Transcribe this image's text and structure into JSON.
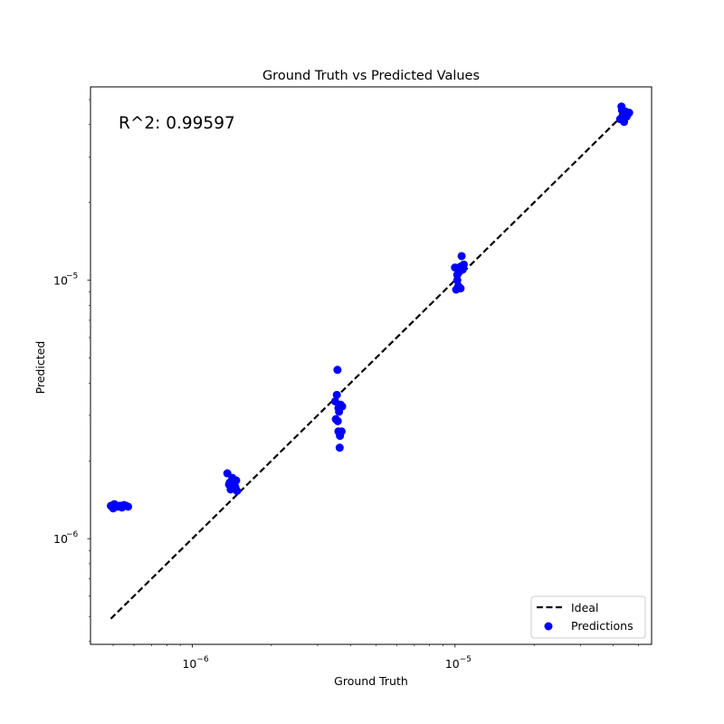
{
  "chart_data": {
    "type": "scatter",
    "title": "Ground Truth vs Predicted Values",
    "xlabel": "Ground Truth",
    "ylabel": "Predicted",
    "xscale": "log",
    "yscale": "log",
    "xlim": [
      4.1e-07,
      5.6e-05
    ],
    "ylim": [
      3.9e-07,
      5.6e-05
    ],
    "annotation": "R^2: 0.99597",
    "x_ticks": [
      {
        "base": "10",
        "exp": "−6",
        "value": 1e-06
      },
      {
        "base": "10",
        "exp": "−5",
        "value": 1e-05
      }
    ],
    "y_ticks": [
      {
        "base": "10",
        "exp": "−6",
        "value": 1e-06
      },
      {
        "base": "10",
        "exp": "−5",
        "value": 1e-05
      }
    ],
    "legend": {
      "location": "lower-right",
      "entries": [
        {
          "label": "Ideal",
          "style": "dashed-line",
          "color": "#000000"
        },
        {
          "label": "Predictions",
          "style": "marker",
          "color": "#0000ff"
        }
      ]
    },
    "series": [
      {
        "name": "Ideal",
        "kind": "line",
        "color": "#000000",
        "points": [
          [
            4.9e-07,
            4.9e-07
          ],
          [
            4.5e-05,
            4.5e-05
          ]
        ]
      },
      {
        "name": "Predictions",
        "kind": "scatter",
        "color": "#0000ff",
        "points": [
          [
            4.9e-07,
            1.34e-06
          ],
          [
            5e-07,
            1.31e-06
          ],
          [
            5.1e-07,
            1.35e-06
          ],
          [
            5.2e-07,
            1.33e-06
          ],
          [
            5.3e-07,
            1.34e-06
          ],
          [
            5.4e-07,
            1.32e-06
          ],
          [
            5.5e-07,
            1.35e-06
          ],
          [
            5.6e-07,
            1.34e-06
          ],
          [
            5.7e-07,
            1.33e-06
          ],
          [
            5.05e-07,
            1.36e-06
          ],
          [
            5.35e-07,
            1.34e-06
          ],
          [
            1.36e-06,
            1.79e-06
          ],
          [
            1.38e-06,
            1.62e-06
          ],
          [
            1.4e-06,
            1.55e-06
          ],
          [
            1.42e-06,
            1.72e-06
          ],
          [
            1.43e-06,
            1.6e-06
          ],
          [
            1.45e-06,
            1.66e-06
          ],
          [
            1.46e-06,
            1.58e-06
          ],
          [
            1.47e-06,
            1.68e-06
          ],
          [
            1.48e-06,
            1.53e-06
          ],
          [
            1.39e-06,
            1.65e-06
          ],
          [
            1.44e-06,
            1.62e-06
          ],
          [
            3.5e-06,
            3.4e-06
          ],
          [
            3.52e-06,
            2.9e-06
          ],
          [
            3.55e-06,
            3.6e-06
          ],
          [
            3.57e-06,
            4.5e-06
          ],
          [
            3.58e-06,
            2.85e-06
          ],
          [
            3.6e-06,
            2.6e-06
          ],
          [
            3.62e-06,
            3.1e-06
          ],
          [
            3.64e-06,
            2.25e-06
          ],
          [
            3.65e-06,
            2.5e-06
          ],
          [
            3.67e-06,
            3.3e-06
          ],
          [
            3.7e-06,
            2.6e-06
          ],
          [
            3.72e-06,
            3.25e-06
          ],
          [
            3.6e-06,
            3.2e-06
          ],
          [
            1e-05,
            1.12e-05
          ],
          [
            1.01e-05,
            9.2e-06
          ],
          [
            1.02e-05,
            1.05e-05
          ],
          [
            1.03e-05,
            9.5e-06
          ],
          [
            1.04e-05,
            1.08e-05
          ],
          [
            1.05e-05,
            9.3e-06
          ],
          [
            1.06e-05,
            1.24e-05
          ],
          [
            1.07e-05,
            1.1e-05
          ],
          [
            1.08e-05,
            1.15e-05
          ],
          [
            1.02e-05,
            1e-05
          ],
          [
            1.05e-05,
            1.13e-05
          ],
          [
            4.25e-05,
            4.2e-05
          ],
          [
            4.3e-05,
            4.7e-05
          ],
          [
            4.35e-05,
            4.35e-05
          ],
          [
            4.4e-05,
            4.1e-05
          ],
          [
            4.45e-05,
            4.5e-05
          ],
          [
            4.5e-05,
            4.3e-05
          ],
          [
            4.55e-05,
            4.4e-05
          ],
          [
            4.6e-05,
            4.45e-05
          ],
          [
            4.32e-05,
            4.55e-05
          ]
        ]
      }
    ]
  }
}
